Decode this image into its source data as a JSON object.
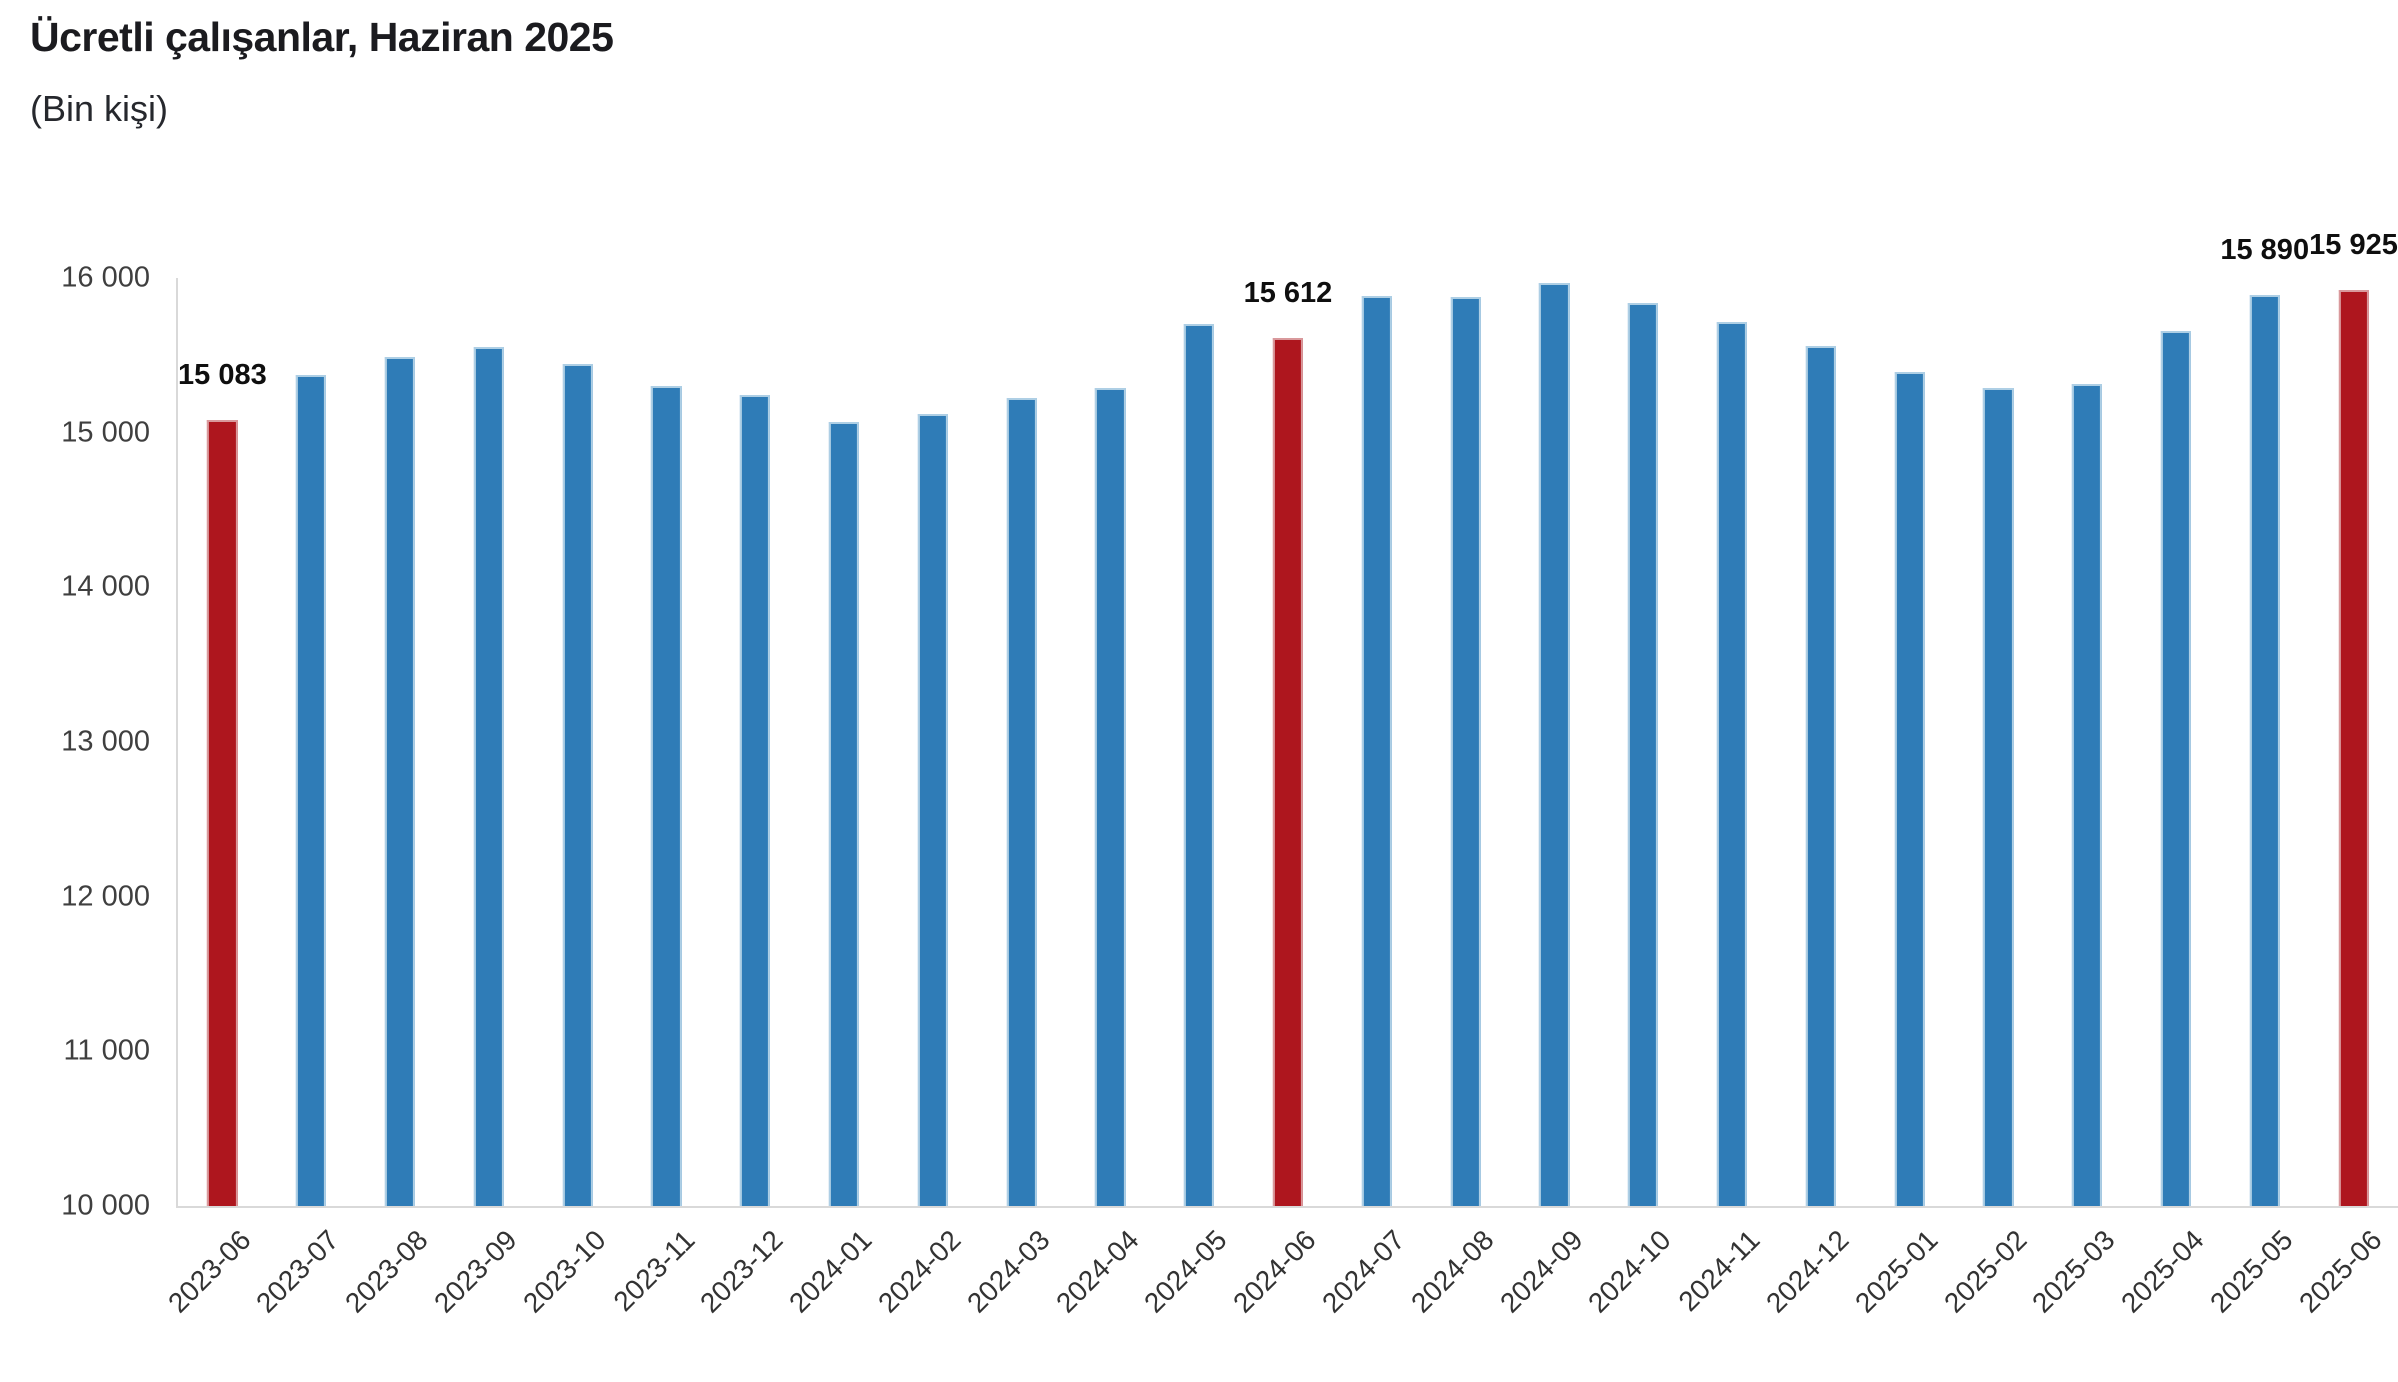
{
  "header": {
    "title": "Ücretli çalışanlar, Haziran 2025",
    "subtitle": "(Bin kişi)"
  },
  "colors": {
    "bar_blue": "#2f7cb7",
    "bar_blue_edge": "#aecfe5",
    "bar_red": "#ae161e",
    "bar_red_edge": "#d9999c",
    "axis_line": "#d9d9d9",
    "y_tick_label": "#3f3f3f",
    "x_tick_label": "#333333",
    "data_label": "#0f0f0f",
    "title": "#1b1b1f",
    "subtitle": "#26282d"
  },
  "chart_data": {
    "type": "bar",
    "title": "Ücretli çalışanlar, Haziran 2025",
    "subtitle": "(Bin kişi)",
    "ylabel": "Bin kişi",
    "xlabel": "",
    "ylim": [
      10000,
      16000
    ],
    "ytick_labels": [
      "16 000",
      "15 000",
      "14 000",
      "13 000",
      "12 000",
      "11 000",
      "10 000"
    ],
    "ytick_values": [
      16000,
      15000,
      14000,
      13000,
      12000,
      11000,
      10000
    ],
    "grid": false,
    "legend": false,
    "x_label_rotation": -45,
    "categories": [
      "2023-06",
      "2023-07",
      "2023-08",
      "2023-09",
      "2023-10",
      "2023-11",
      "2023-12",
      "2024-01",
      "2024-02",
      "2024-03",
      "2024-04",
      "2024-05",
      "2024-06",
      "2024-07",
      "2024-08",
      "2024-09",
      "2024-10",
      "2024-11",
      "2024-12",
      "2025-01",
      "2025-02",
      "2025-03",
      "2025-04",
      "2025-05",
      "2025-06"
    ],
    "values": [
      15083,
      15375,
      15490,
      15555,
      15445,
      15305,
      15245,
      15070,
      15120,
      15225,
      15290,
      15700,
      15612,
      15885,
      15880,
      15965,
      15840,
      15715,
      15560,
      15395,
      15290,
      15315,
      15655,
      15890,
      15925
    ],
    "highlighted_categories": [
      "2023-06",
      "2024-06",
      "2025-06"
    ],
    "data_labels": {
      "2023-06": "15 083",
      "2024-06": "15 612",
      "2025-05": "15 890",
      "2025-06": "15 925"
    }
  }
}
